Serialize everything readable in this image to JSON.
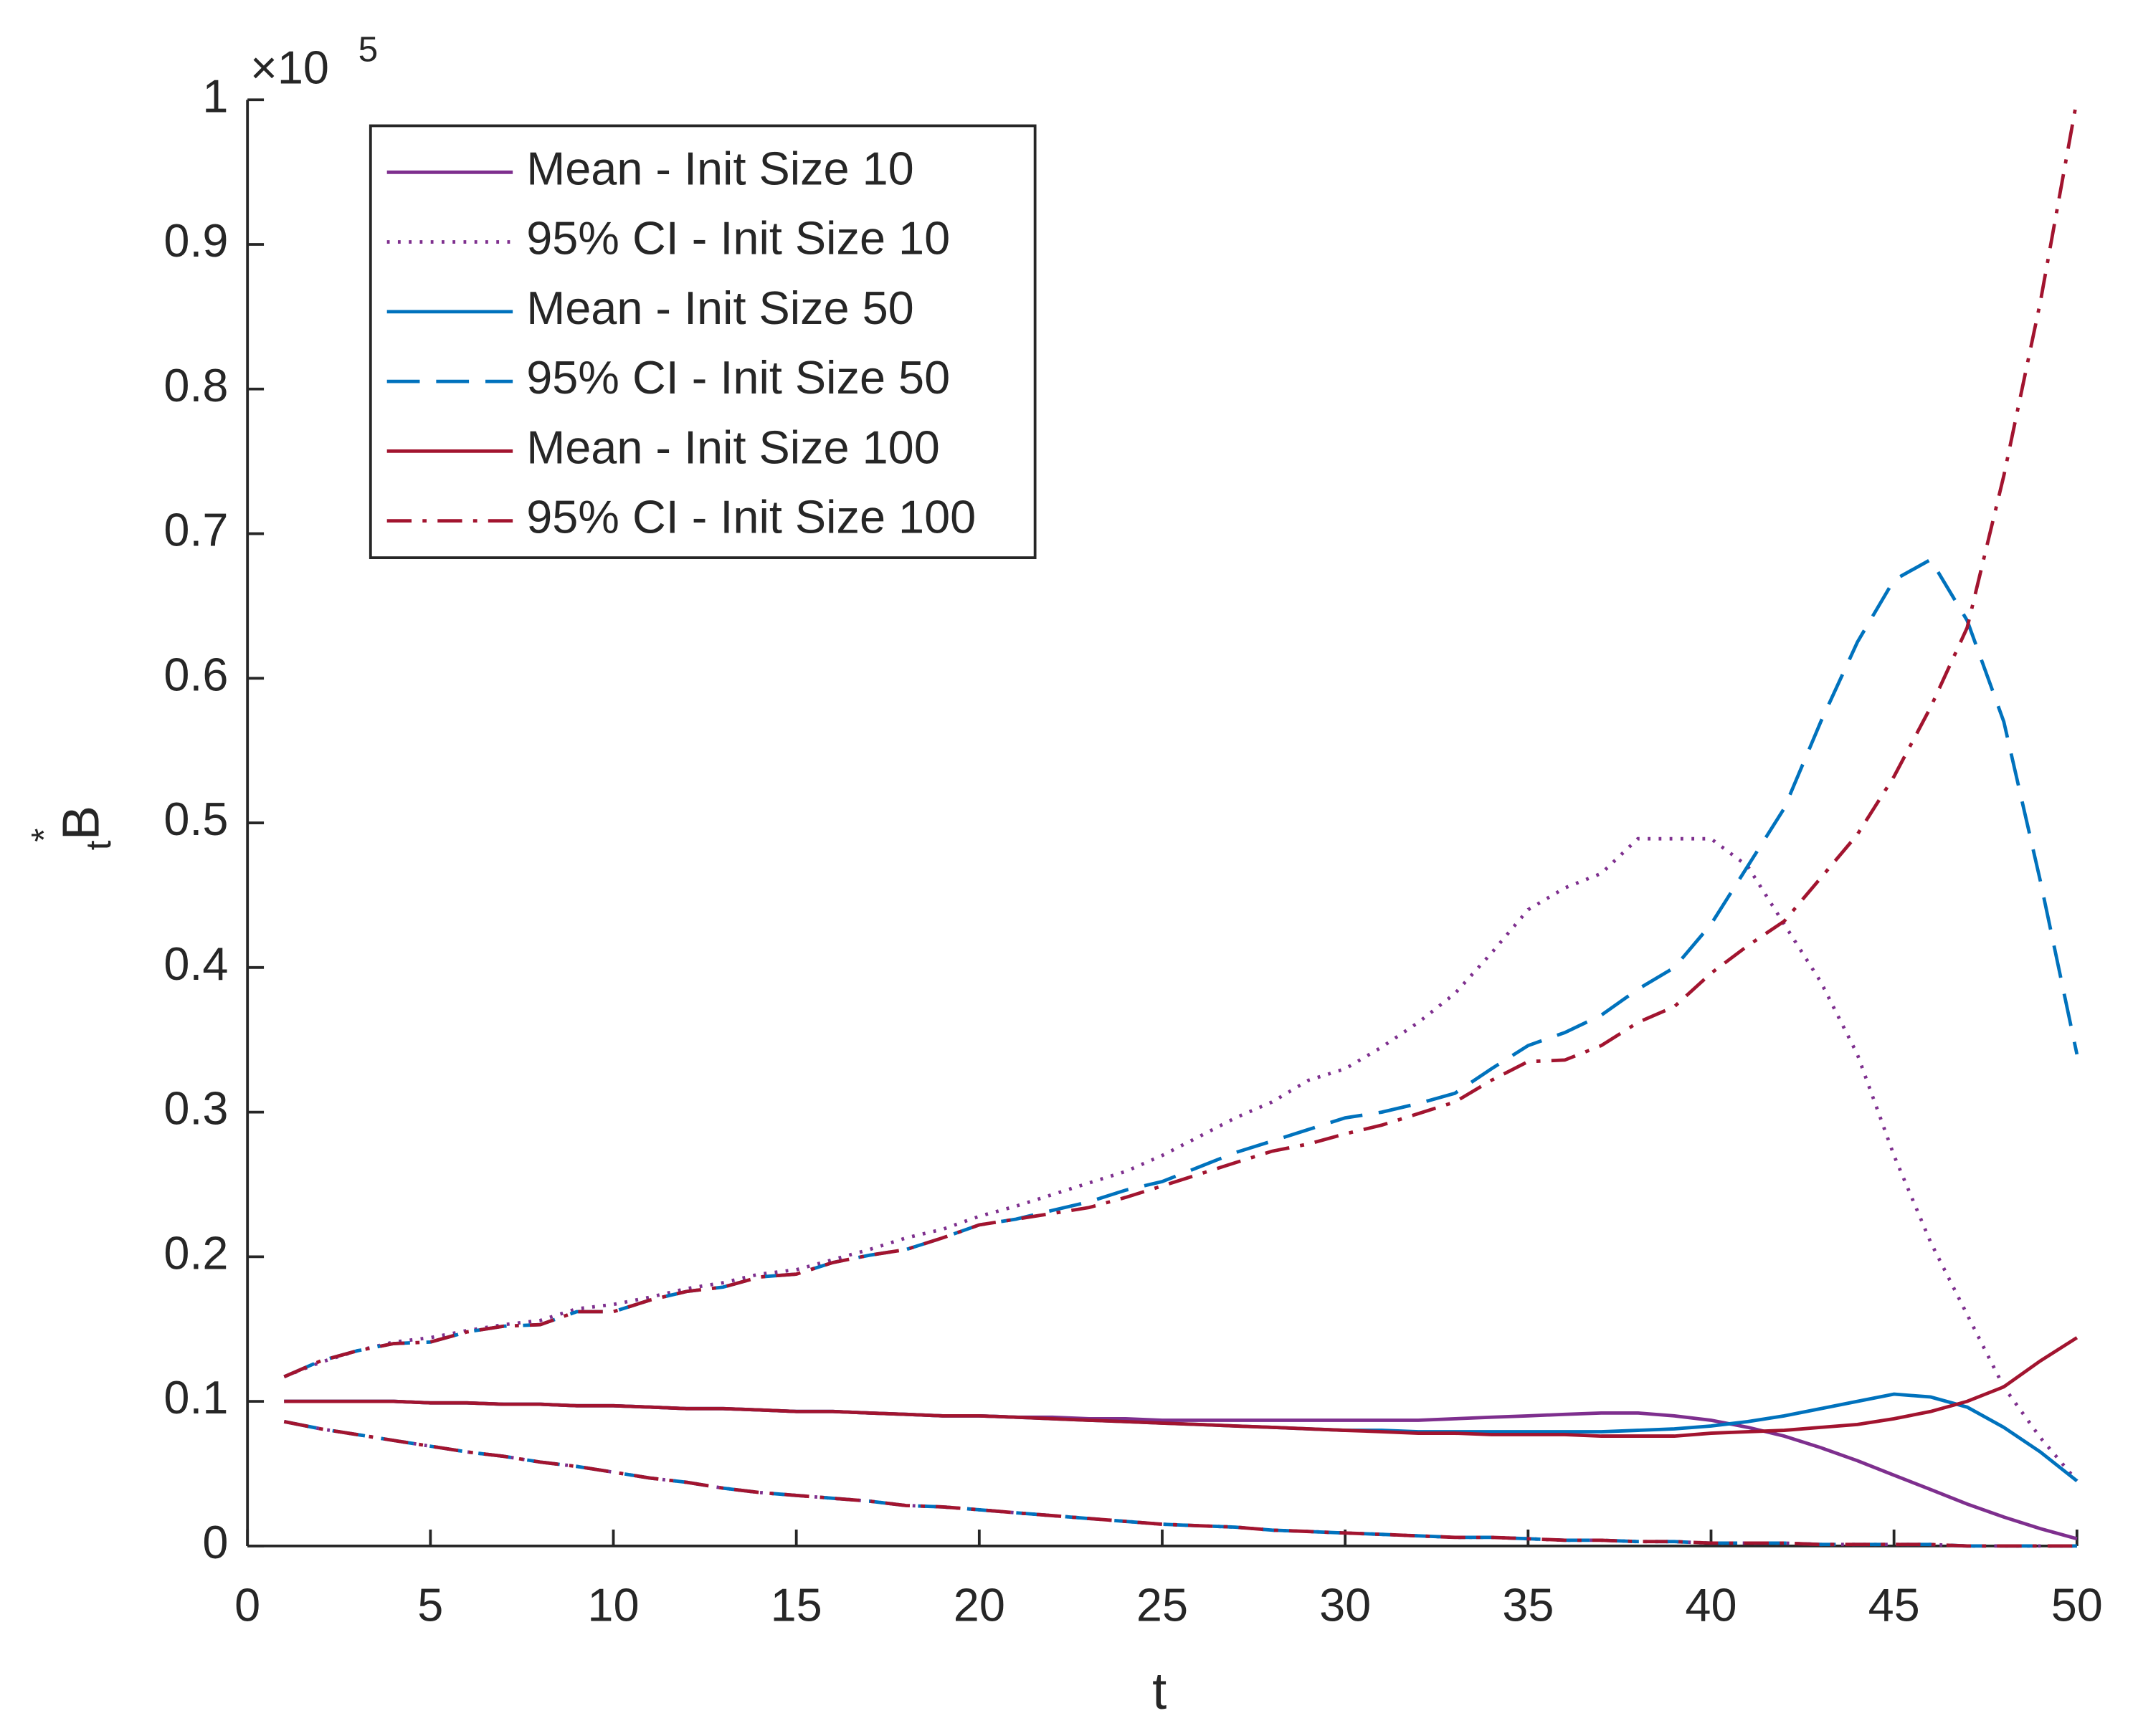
{
  "chart_data": {
    "type": "line",
    "xlabel": "t",
    "ylabel": "B",
    "ylabel_sup": "*",
    "ylabel_sub": "t",
    "y_exponent_base": "×10",
    "y_exponent": "5",
    "x": [
      1,
      2,
      3,
      4,
      5,
      6,
      7,
      8,
      9,
      10,
      11,
      12,
      13,
      14,
      15,
      16,
      17,
      18,
      19,
      20,
      21,
      22,
      23,
      24,
      25,
      26,
      27,
      28,
      29,
      30,
      31,
      32,
      33,
      34,
      35,
      36,
      37,
      38,
      39,
      40,
      41,
      42,
      43,
      44,
      45,
      46,
      47,
      48,
      49,
      50
    ],
    "xlim": [
      0,
      50
    ],
    "xticks": [
      0,
      5,
      10,
      15,
      20,
      25,
      30,
      35,
      40,
      45,
      50
    ],
    "ylim": [
      0,
      1
    ],
    "yticks": [
      0,
      0.1,
      0.2,
      0.3,
      0.4,
      0.5,
      0.6,
      0.7,
      0.8,
      0.9,
      1
    ],
    "legend": "upper-left",
    "series": [
      {
        "name": "Mean - Init Size 10",
        "color": "#7e2f8e",
        "dash": "solid",
        "values": [
          0.1,
          0.1,
          0.1,
          0.1,
          0.099,
          0.099,
          0.098,
          0.098,
          0.097,
          0.097,
          0.096,
          0.095,
          0.095,
          0.094,
          0.093,
          0.093,
          0.092,
          0.091,
          0.09,
          0.09,
          0.089,
          0.089,
          0.088,
          0.088,
          0.087,
          0.087,
          0.087,
          0.087,
          0.087,
          0.087,
          0.087,
          0.087,
          0.088,
          0.089,
          0.09,
          0.091,
          0.092,
          0.092,
          0.09,
          0.087,
          0.082,
          0.076,
          0.068,
          0.059,
          0.049,
          0.039,
          0.029,
          0.02,
          0.012,
          0.005
        ]
      },
      {
        "name": "95% CI - Init Size 10",
        "color": "#7e2f8e",
        "dash": "dotted",
        "values": [
          0.117,
          0.127,
          0.135,
          0.141,
          0.144,
          0.149,
          0.153,
          0.156,
          0.164,
          0.167,
          0.172,
          0.178,
          0.182,
          0.188,
          0.191,
          0.198,
          0.205,
          0.213,
          0.219,
          0.228,
          0.235,
          0.243,
          0.251,
          0.259,
          0.27,
          0.283,
          0.296,
          0.307,
          0.322,
          0.33,
          0.345,
          0.362,
          0.382,
          0.41,
          0.44,
          0.455,
          0.465,
          0.489,
          0.489,
          0.489,
          0.47,
          0.43,
          0.39,
          0.34,
          0.27,
          0.21,
          0.16,
          0.11,
          0.075,
          0.045
        ],
        "lower": [
          0.086,
          0.081,
          0.077,
          0.073,
          0.069,
          0.065,
          0.062,
          0.058,
          0.055,
          0.051,
          0.047,
          0.044,
          0.04,
          0.037,
          0.035,
          0.033,
          0.031,
          0.028,
          0.027,
          0.025,
          0.023,
          0.021,
          0.019,
          0.017,
          0.015,
          0.014,
          0.013,
          0.011,
          0.01,
          0.009,
          0.008,
          0.007,
          0.006,
          0.006,
          0.005,
          0.004,
          0.004,
          0.003,
          0.003,
          0.002,
          0.002,
          0.002,
          0.001,
          0.001,
          0.001,
          0.001,
          0.0,
          0.0,
          0.0,
          0.0
        ]
      },
      {
        "name": "Mean - Init Size 50",
        "color": "#0072bd",
        "dash": "solid",
        "values": [
          0.1,
          0.1,
          0.1,
          0.1,
          0.099,
          0.099,
          0.098,
          0.098,
          0.097,
          0.097,
          0.096,
          0.095,
          0.095,
          0.094,
          0.093,
          0.093,
          0.092,
          0.091,
          0.09,
          0.09,
          0.089,
          0.088,
          0.087,
          0.086,
          0.085,
          0.084,
          0.083,
          0.082,
          0.081,
          0.08,
          0.08,
          0.079,
          0.079,
          0.079,
          0.079,
          0.079,
          0.079,
          0.08,
          0.081,
          0.083,
          0.086,
          0.09,
          0.095,
          0.1,
          0.105,
          0.103,
          0.096,
          0.082,
          0.065,
          0.045
        ]
      },
      {
        "name": "95% CI - Init Size 50",
        "color": "#0072bd",
        "dash": "dashed",
        "values": [
          0.117,
          0.128,
          0.135,
          0.14,
          0.141,
          0.148,
          0.152,
          0.153,
          0.162,
          0.162,
          0.17,
          0.176,
          0.179,
          0.186,
          0.188,
          0.196,
          0.201,
          0.205,
          0.213,
          0.222,
          0.226,
          0.232,
          0.238,
          0.246,
          0.252,
          0.262,
          0.272,
          0.28,
          0.288,
          0.296,
          0.3,
          0.306,
          0.313,
          0.33,
          0.346,
          0.355,
          0.367,
          0.385,
          0.4,
          0.43,
          0.47,
          0.51,
          0.57,
          0.625,
          0.668,
          0.682,
          0.64,
          0.57,
          0.46,
          0.34
        ],
        "lower": [
          0.086,
          0.081,
          0.077,
          0.073,
          0.069,
          0.065,
          0.062,
          0.058,
          0.055,
          0.051,
          0.047,
          0.044,
          0.04,
          0.037,
          0.035,
          0.033,
          0.031,
          0.028,
          0.027,
          0.025,
          0.023,
          0.021,
          0.019,
          0.017,
          0.015,
          0.014,
          0.013,
          0.011,
          0.01,
          0.009,
          0.008,
          0.007,
          0.006,
          0.006,
          0.005,
          0.004,
          0.004,
          0.003,
          0.003,
          0.002,
          0.002,
          0.002,
          0.001,
          0.001,
          0.001,
          0.001,
          0.0,
          0.0,
          0.0,
          0.0
        ]
      },
      {
        "name": "Mean - Init Size 100",
        "color": "#a2142f",
        "dash": "solid",
        "values": [
          0.1,
          0.1,
          0.1,
          0.1,
          0.099,
          0.099,
          0.098,
          0.098,
          0.097,
          0.097,
          0.096,
          0.095,
          0.095,
          0.094,
          0.093,
          0.093,
          0.092,
          0.091,
          0.09,
          0.09,
          0.089,
          0.088,
          0.087,
          0.086,
          0.085,
          0.084,
          0.083,
          0.082,
          0.081,
          0.08,
          0.079,
          0.078,
          0.078,
          0.077,
          0.077,
          0.077,
          0.076,
          0.076,
          0.076,
          0.078,
          0.079,
          0.08,
          0.082,
          0.084,
          0.088,
          0.093,
          0.1,
          0.11,
          0.128,
          0.144
        ]
      },
      {
        "name": "95% CI - Init Size 100",
        "color": "#a2142f",
        "dash": "dashdot",
        "values": [
          0.117,
          0.128,
          0.135,
          0.14,
          0.141,
          0.148,
          0.152,
          0.153,
          0.162,
          0.162,
          0.17,
          0.176,
          0.179,
          0.186,
          0.188,
          0.196,
          0.201,
          0.205,
          0.213,
          0.222,
          0.226,
          0.23,
          0.234,
          0.241,
          0.249,
          0.257,
          0.265,
          0.273,
          0.278,
          0.285,
          0.291,
          0.299,
          0.307,
          0.322,
          0.335,
          0.336,
          0.346,
          0.362,
          0.373,
          0.396,
          0.415,
          0.432,
          0.462,
          0.492,
          0.532,
          0.58,
          0.635,
          0.74,
          0.86,
          1.0
        ],
        "lower": [
          0.086,
          0.081,
          0.077,
          0.073,
          0.069,
          0.065,
          0.062,
          0.058,
          0.055,
          0.051,
          0.047,
          0.044,
          0.04,
          0.037,
          0.035,
          0.033,
          0.031,
          0.028,
          0.027,
          0.025,
          0.023,
          0.021,
          0.019,
          0.017,
          0.015,
          0.014,
          0.013,
          0.011,
          0.01,
          0.009,
          0.008,
          0.007,
          0.006,
          0.006,
          0.005,
          0.004,
          0.004,
          0.003,
          0.003,
          0.002,
          0.002,
          0.002,
          0.001,
          0.001,
          0.001,
          0.001,
          0.0,
          0.0,
          0.0,
          0.0
        ]
      }
    ]
  }
}
